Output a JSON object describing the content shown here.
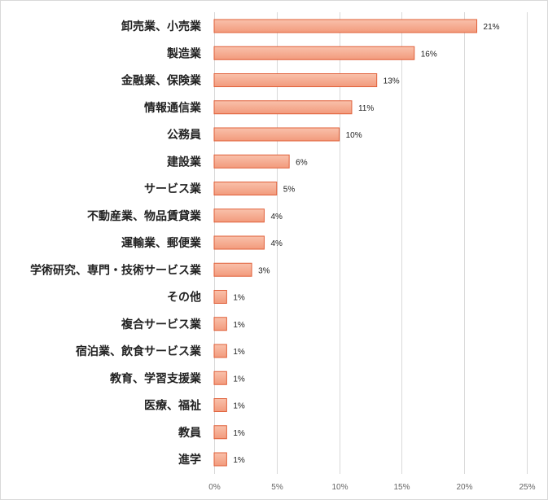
{
  "chart_data": {
    "type": "bar",
    "orientation": "horizontal",
    "categories": [
      "卸売業、小売業",
      "製造業",
      "金融業、保険業",
      "情報通信業",
      "公務員",
      "建設業",
      "サービス業",
      "不動産業、物品賃貸業",
      "運輸業、郵便業",
      "学術研究、専門・技術サービス業",
      "その他",
      "複合サービス業",
      "宿泊業、飲食サービス業",
      "教育、学習支援業",
      "医療、福祉",
      "教員",
      "進学"
    ],
    "values": [
      21,
      16,
      13,
      11,
      10,
      6,
      5,
      4,
      4,
      3,
      1,
      1,
      1,
      1,
      1,
      1,
      1
    ],
    "value_labels": [
      "21%",
      "16%",
      "13%",
      "11%",
      "10%",
      "6%",
      "5%",
      "4%",
      "4%",
      "3%",
      "1%",
      "1%",
      "1%",
      "1%",
      "1%",
      "1%",
      "1%"
    ],
    "xlim": [
      0,
      25
    ],
    "xticks": [
      0,
      5,
      10,
      15,
      20,
      25
    ],
    "xtick_labels": [
      "0%",
      "5%",
      "10%",
      "15%",
      "20%",
      "25%"
    ],
    "grid": "vertical",
    "legend": "none",
    "title": "",
    "xlabel": "",
    "ylabel": ""
  },
  "colors": {
    "bar_fill_top": "#f9c1ab",
    "bar_fill_bottom": "#f29a7c",
    "bar_stroke": "#e0603a",
    "gridline": "#d9d9d9"
  }
}
